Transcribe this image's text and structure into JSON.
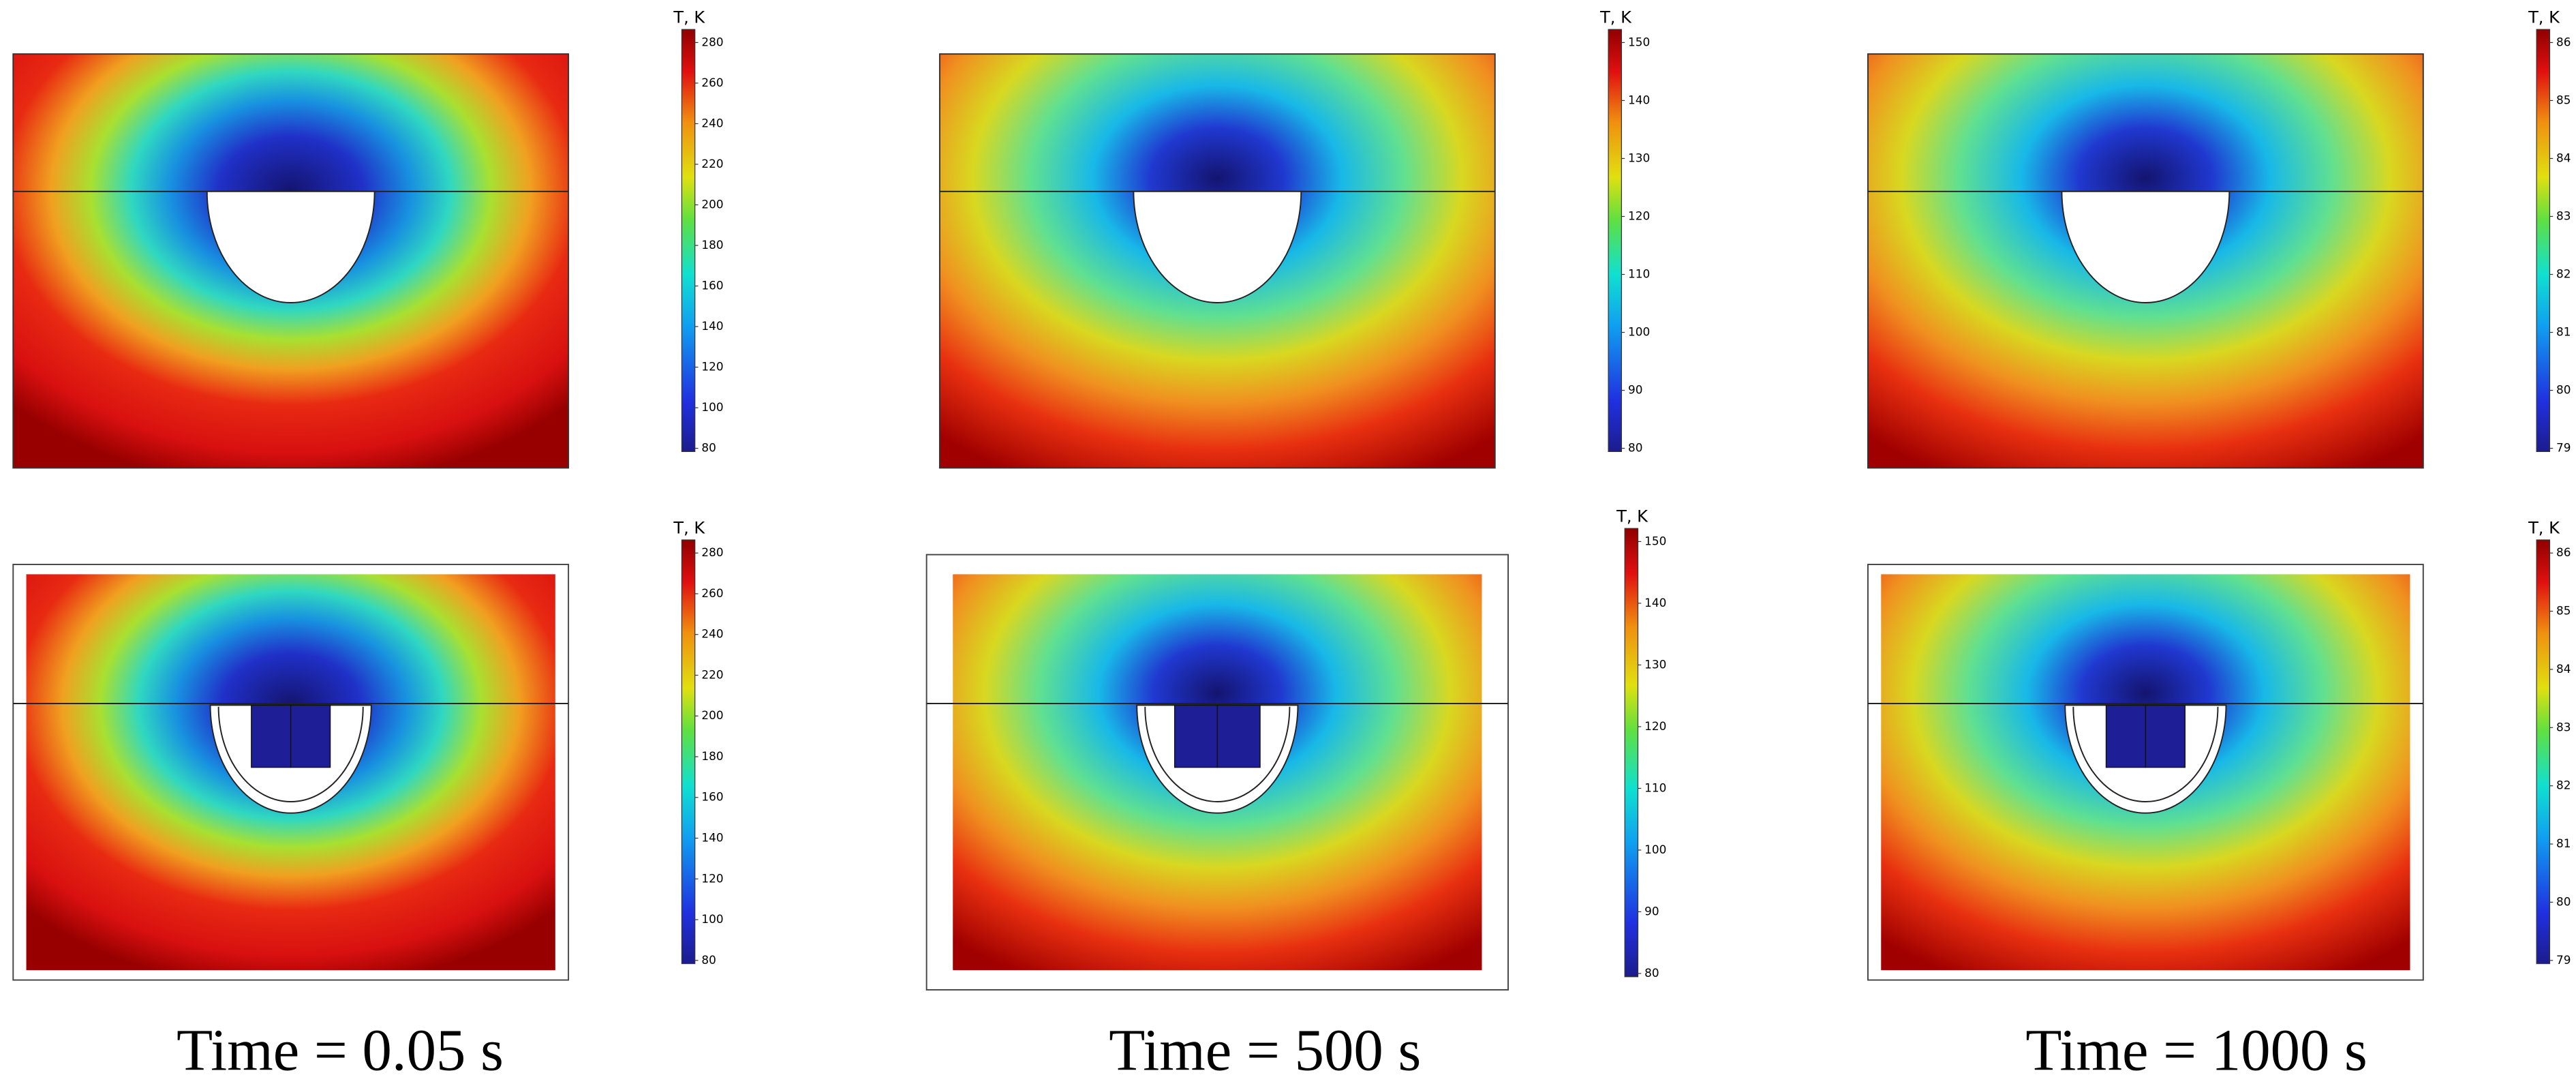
{
  "panels": [
    {
      "colorbar_title": "T, K",
      "ticks": [
        80,
        100,
        120,
        140,
        160,
        180,
        200,
        220,
        240,
        260,
        280
      ]
    },
    {
      "colorbar_title": "T, K",
      "ticks": [
        80,
        90,
        100,
        110,
        120,
        130,
        140,
        150
      ]
    },
    {
      "colorbar_title": "T, K",
      "ticks": [
        79,
        80,
        81,
        82,
        83,
        84,
        85,
        86
      ]
    },
    {
      "colorbar_title": "T, K",
      "ticks": [
        80,
        100,
        120,
        140,
        160,
        180,
        200,
        220,
        240,
        260,
        280
      ]
    },
    {
      "colorbar_title": "T, K",
      "ticks": [
        80,
        90,
        100,
        110,
        120,
        130,
        140,
        150
      ]
    },
    {
      "colorbar_title": "T, K",
      "ticks": [
        79,
        80,
        81,
        82,
        83,
        84,
        85,
        86
      ]
    }
  ],
  "captions": [
    "Time = 0.05 s",
    "Time = 500 s",
    "Time = 1000 s"
  ]
}
